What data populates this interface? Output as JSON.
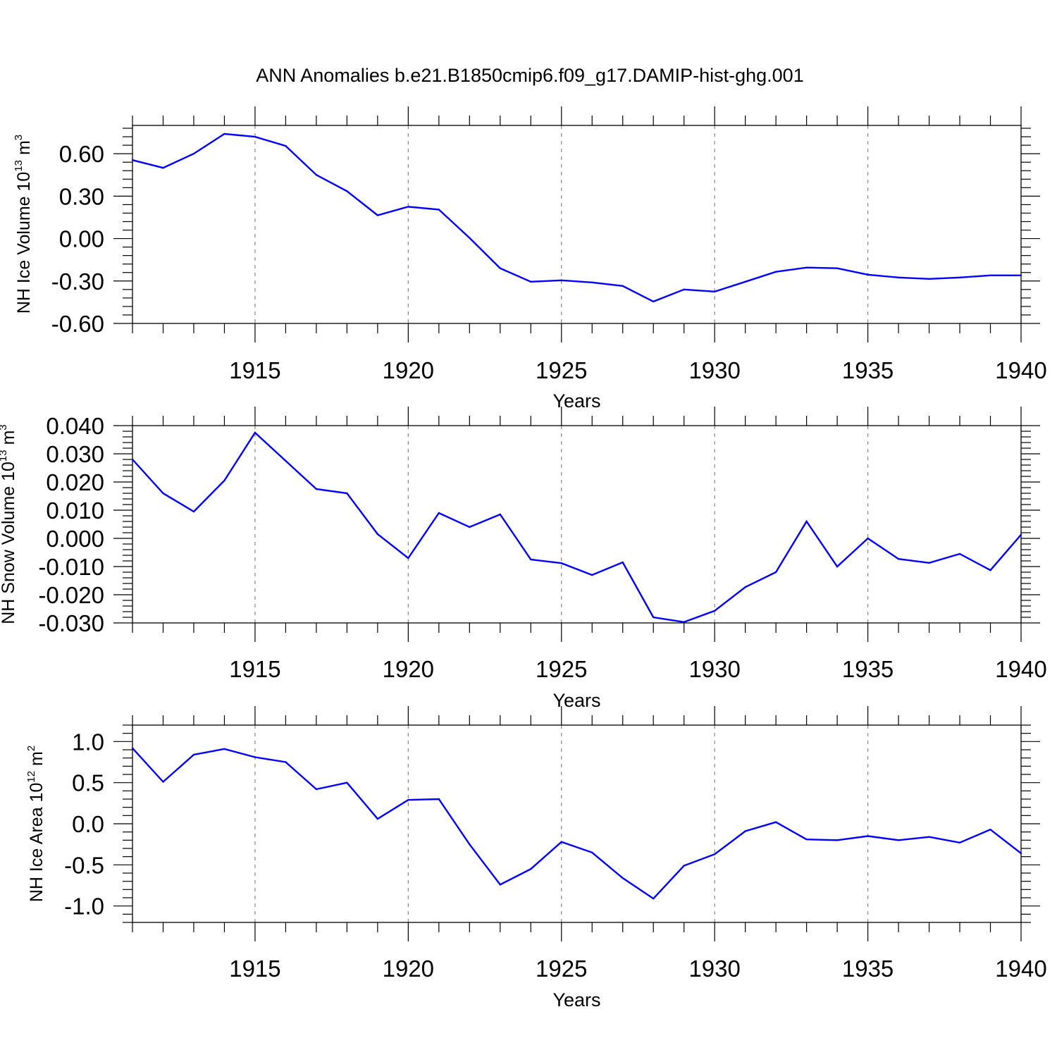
{
  "title": "ANN Anomalies b.e21.B1850cmip6.f09_g17.DAMIP-hist-ghg.001",
  "colors": {
    "line": "#0000ff",
    "axis": "#000000",
    "grid": "#888888"
  },
  "chart_data": [
    {
      "type": "line",
      "ylabel": {
        "text": "NH Ice Volume 10",
        "exp": "13",
        "unit": " m",
        "unit_exp": "3"
      },
      "xlabel": "Years",
      "xlim": [
        1911,
        1940
      ],
      "ylim": [
        -0.6,
        0.8
      ],
      "yticks": [
        -0.6,
        -0.3,
        0.0,
        0.3,
        0.6
      ],
      "ytick_labels": [
        "-0.60",
        "-0.30",
        "0.00",
        "0.30",
        "0.60"
      ],
      "xticks": [
        1915,
        1920,
        1925,
        1930,
        1935,
        1940
      ],
      "xtick_labels": [
        "1915",
        "1920",
        "1925",
        "1930",
        "1935",
        "1940"
      ],
      "grid": "vertical dashed at major ticks",
      "x": [
        1911,
        1912,
        1913,
        1914,
        1915,
        1916,
        1917,
        1918,
        1919,
        1920,
        1921,
        1922,
        1923,
        1924,
        1925,
        1926,
        1927,
        1928,
        1929,
        1930,
        1931,
        1932,
        1933,
        1934,
        1935,
        1936,
        1937,
        1938,
        1939,
        1940
      ],
      "y": [
        0.555,
        0.5,
        0.6,
        0.74,
        0.72,
        0.655,
        0.45,
        0.335,
        0.165,
        0.225,
        0.205,
        0.005,
        -0.21,
        -0.305,
        -0.295,
        -0.31,
        -0.335,
        -0.445,
        -0.36,
        -0.375,
        -0.305,
        -0.235,
        -0.205,
        -0.21,
        -0.255,
        -0.275,
        -0.285,
        -0.275,
        -0.26,
        -0.26
      ]
    },
    {
      "type": "line",
      "ylabel": {
        "text": "NH Snow Volume 10",
        "exp": "13",
        "unit": " m",
        "unit_exp": "3"
      },
      "xlabel": "Years",
      "xlim": [
        1911,
        1940
      ],
      "ylim": [
        -0.03,
        0.04
      ],
      "yticks": [
        -0.03,
        -0.02,
        -0.01,
        0.0,
        0.01,
        0.02,
        0.03,
        0.04
      ],
      "ytick_labels": [
        "-0.030",
        "-0.020",
        "-0.010",
        "0.000",
        "0.010",
        "0.020",
        "0.030",
        "0.040"
      ],
      "xticks": [
        1915,
        1920,
        1925,
        1930,
        1935,
        1940
      ],
      "xtick_labels": [
        "1915",
        "1920",
        "1925",
        "1930",
        "1935",
        "1940"
      ],
      "grid": "vertical dashed at major ticks",
      "x": [
        1911,
        1912,
        1913,
        1914,
        1915,
        1916,
        1917,
        1918,
        1919,
        1920,
        1921,
        1922,
        1923,
        1924,
        1925,
        1926,
        1927,
        1928,
        1929,
        1930,
        1931,
        1932,
        1933,
        1934,
        1935,
        1936,
        1937,
        1938,
        1939,
        1940
      ],
      "y": [
        0.028,
        0.016,
        0.0095,
        0.0205,
        0.0375,
        0.0275,
        0.0175,
        0.016,
        0.0015,
        -0.007,
        0.009,
        0.004,
        0.0085,
        -0.0075,
        -0.0088,
        -0.013,
        -0.0085,
        -0.028,
        -0.0297,
        -0.0257,
        -0.0173,
        -0.012,
        0.006,
        -0.01,
        0.0,
        -0.0073,
        -0.0087,
        -0.0055,
        -0.0113,
        0.0013
      ]
    },
    {
      "type": "line",
      "ylabel": {
        "text": "NH Ice Area 10",
        "exp": "12",
        "unit": " m",
        "unit_exp": "2"
      },
      "xlabel": "Years",
      "xlim": [
        1911,
        1940
      ],
      "ylim": [
        -1.2,
        1.2
      ],
      "yticks": [
        -1.0,
        -0.5,
        0.0,
        0.5,
        1.0
      ],
      "ytick_labels": [
        "-1.0",
        "-0.5",
        "0.0",
        "0.5",
        "1.0"
      ],
      "xticks": [
        1915,
        1920,
        1925,
        1930,
        1935,
        1940
      ],
      "xtick_labels": [
        "1915",
        "1920",
        "1925",
        "1930",
        "1935",
        "1940"
      ],
      "grid": "vertical dashed at major ticks",
      "x": [
        1911,
        1912,
        1913,
        1914,
        1915,
        1916,
        1917,
        1918,
        1919,
        1920,
        1921,
        1922,
        1923,
        1924,
        1925,
        1926,
        1927,
        1928,
        1929,
        1930,
        1931,
        1932,
        1933,
        1934,
        1935,
        1936,
        1937,
        1938,
        1939,
        1940
      ],
      "y": [
        0.92,
        0.51,
        0.84,
        0.91,
        0.81,
        0.75,
        0.42,
        0.5,
        0.06,
        0.29,
        0.3,
        -0.25,
        -0.74,
        -0.55,
        -0.22,
        -0.35,
        -0.66,
        -0.91,
        -0.51,
        -0.37,
        -0.09,
        0.02,
        -0.19,
        -0.2,
        -0.15,
        -0.2,
        -0.16,
        -0.23,
        -0.07,
        -0.36
      ]
    }
  ]
}
